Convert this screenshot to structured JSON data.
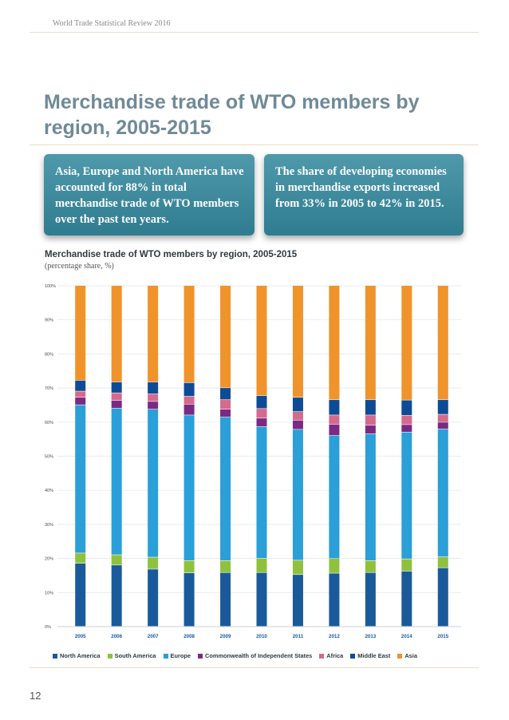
{
  "header": {
    "running_head": "World Trade Statistical Review 2016"
  },
  "page": {
    "title": "Merchandise trade of WTO members by region, 2005-2015",
    "page_number": "12"
  },
  "callouts": [
    {
      "text": "Asia, Europe and North America have accounted for 88% in total merchandise trade of WTO members over the past ten years."
    },
    {
      "text": "The share of developing economies in merchandise exports increased from 33% in 2005 to 42% in 2015."
    }
  ],
  "chart_data": {
    "type": "bar",
    "stacked": true,
    "title": "Merchandise trade of WTO members by region, 2005-2015",
    "subtitle": "(percentage share, %)",
    "xlabel": "",
    "ylabel": "",
    "ylim": [
      0,
      100
    ],
    "yticks": [
      0,
      10,
      20,
      30,
      40,
      50,
      60,
      70,
      80,
      90,
      100
    ],
    "ytick_labels": [
      "0%",
      "10%",
      "20%",
      "30%",
      "40%",
      "50%",
      "60%",
      "70%",
      "80%",
      "90%",
      "100%"
    ],
    "grid": true,
    "legend_position": "bottom",
    "categories": [
      "2005",
      "2006",
      "2007",
      "2008",
      "2009",
      "2010",
      "2011",
      "2012",
      "2013",
      "2014",
      "2015"
    ],
    "series": [
      {
        "name": "North America",
        "color": "#1a5a9a",
        "values": [
          18.5,
          18.0,
          16.8,
          15.7,
          15.8,
          15.8,
          15.2,
          15.6,
          15.8,
          16.2,
          17.2
        ]
      },
      {
        "name": "South America",
        "color": "#8fc13e",
        "values": [
          3.0,
          3.0,
          3.5,
          3.6,
          3.5,
          4.2,
          4.2,
          4.3,
          3.5,
          3.6,
          3.2
        ]
      },
      {
        "name": "Europe",
        "color": "#2a9fd8",
        "values": [
          43.5,
          43.0,
          43.4,
          42.7,
          42.1,
          38.6,
          38.4,
          36.1,
          37.2,
          37.2,
          37.5
        ]
      },
      {
        "name": "Commonwealth of Independent States",
        "color": "#7b2a84",
        "values": [
          2.2,
          2.3,
          2.3,
          3.2,
          2.3,
          2.5,
          2.7,
          3.3,
          2.5,
          2.2,
          2.0
        ]
      },
      {
        "name": "Africa",
        "color": "#d46a8c",
        "values": [
          1.8,
          2.2,
          2.2,
          2.3,
          2.8,
          2.8,
          2.5,
          2.7,
          3.0,
          2.7,
          2.3
        ]
      },
      {
        "name": "Middle East",
        "color": "#0e4b96",
        "values": [
          3.2,
          3.2,
          3.5,
          4.0,
          3.5,
          3.8,
          4.2,
          4.5,
          4.5,
          4.5,
          4.3
        ]
      },
      {
        "name": "Asia",
        "color": "#f0932b",
        "values": [
          27.8,
          28.3,
          28.3,
          28.5,
          30.0,
          32.3,
          32.8,
          33.5,
          33.5,
          33.6,
          33.5
        ]
      }
    ]
  }
}
